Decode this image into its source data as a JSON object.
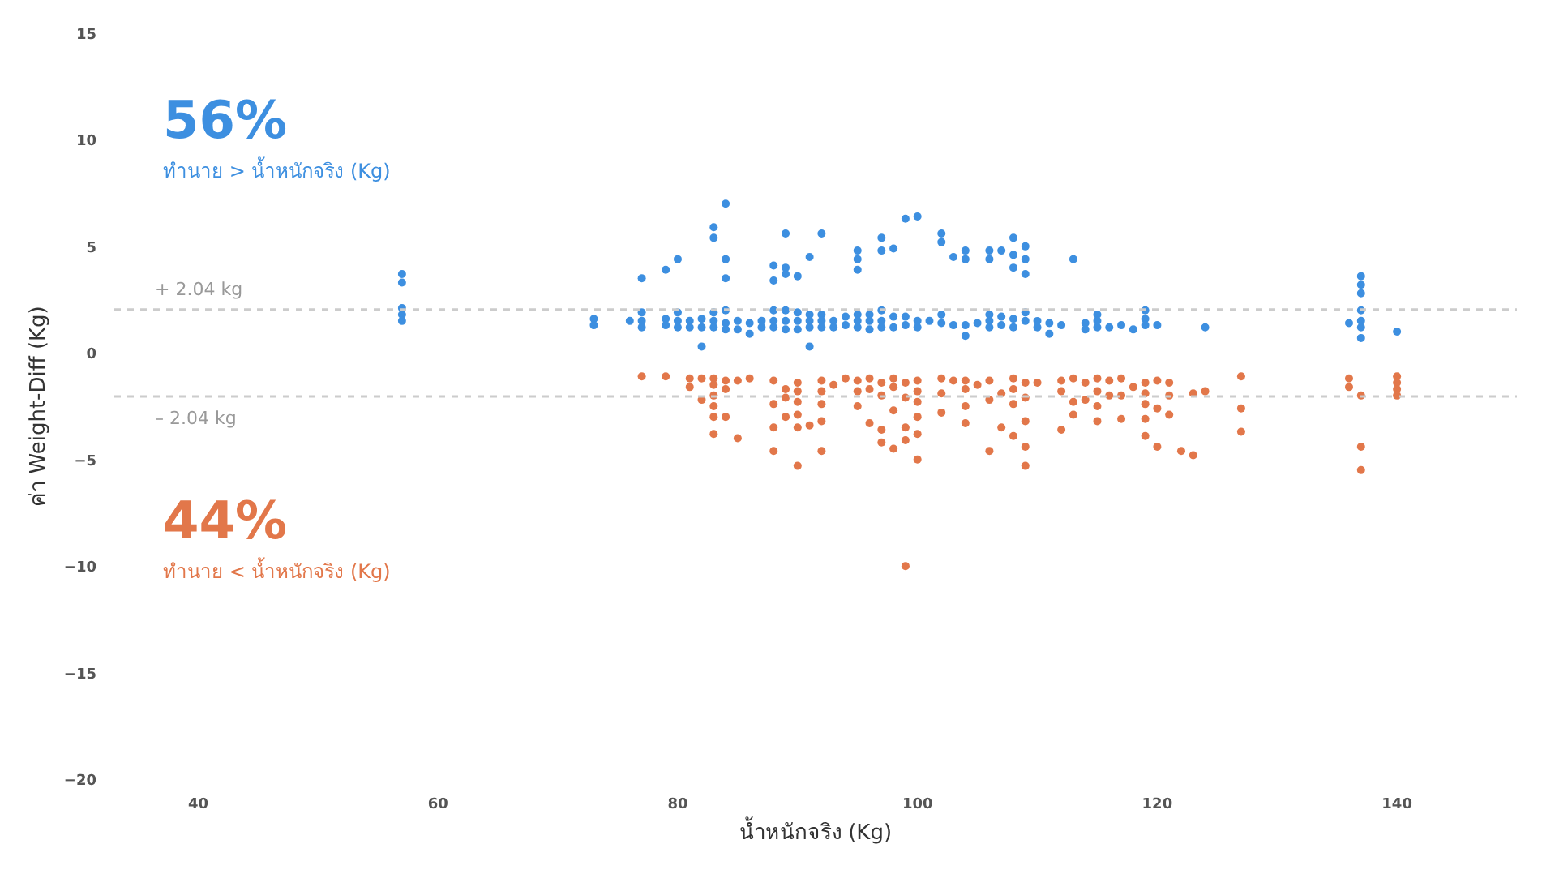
{
  "chart_data": {
    "type": "scatter",
    "xlabel": "น้ำหนักจริง (Kg)",
    "ylabel": "ค่า Weight-Diff (Kg)",
    "xlim": [
      33,
      150
    ],
    "ylim": [
      -20,
      15
    ],
    "xticks": [
      40,
      60,
      80,
      100,
      120,
      140
    ],
    "yticks": [
      -20,
      -15,
      -10,
      -5,
      0,
      5,
      10,
      15
    ],
    "grid": false,
    "marker": "circle",
    "annotations": [
      "56%",
      "ทำนาย > น้ำหนักจริง (Kg)",
      "44%",
      "ทำนาย < น้ำหนักจริง (Kg)"
    ],
    "ref_lines": [
      {
        "axis": "y",
        "value": 2.04,
        "label": "+ 2.04 kg",
        "color": "#cccccc",
        "line_style": "dashed"
      },
      {
        "axis": "y",
        "value": -2.04,
        "label": "– 2.04 kg",
        "color": "#cccccc",
        "line_style": "dashed"
      }
    ],
    "series": [
      {
        "color": "#3d8fe0",
        "x": [
          57,
          57,
          57,
          57,
          57,
          73,
          73,
          76,
          77,
          77,
          77,
          77,
          79,
          79,
          79,
          80,
          80,
          80,
          80,
          81,
          81,
          82,
          82,
          82,
          83,
          83,
          83,
          83,
          83,
          84,
          84,
          84,
          84,
          84,
          84,
          85,
          85,
          86,
          86,
          87,
          87,
          88,
          88,
          88,
          88,
          88,
          89,
          89,
          89,
          89,
          89,
          89,
          90,
          90,
          90,
          90,
          91,
          91,
          91,
          91,
          91,
          92,
          92,
          92,
          92,
          93,
          93,
          94,
          94,
          95,
          95,
          95,
          95,
          95,
          95,
          96,
          96,
          96,
          97,
          97,
          97,
          97,
          97,
          98,
          98,
          98,
          99,
          99,
          99,
          100,
          100,
          100,
          101,
          102,
          102,
          102,
          102,
          103,
          103,
          104,
          104,
          104,
          104,
          105,
          106,
          106,
          106,
          106,
          106,
          107,
          107,
          107,
          108,
          108,
          108,
          108,
          108,
          109,
          109,
          109,
          109,
          109,
          110,
          110,
          111,
          111,
          112,
          113,
          114,
          114,
          115,
          115,
          115,
          116,
          117,
          118,
          119,
          119,
          119,
          120,
          124,
          136,
          137,
          137,
          137,
          137,
          137,
          137,
          137,
          140
        ],
        "values": [
          3.7,
          3.3,
          2.1,
          1.8,
          1.5,
          1.6,
          1.3,
          1.5,
          3.5,
          1.9,
          1.5,
          1.2,
          3.9,
          1.6,
          1.3,
          4.4,
          1.9,
          1.5,
          1.2,
          1.5,
          1.2,
          1.6,
          1.2,
          0.3,
          5.9,
          5.4,
          1.9,
          1.5,
          1.2,
          7.0,
          4.4,
          3.5,
          2.0,
          1.4,
          1.1,
          1.5,
          1.1,
          1.4,
          0.9,
          1.5,
          1.2,
          4.1,
          3.4,
          2.0,
          1.5,
          1.2,
          5.6,
          4.0,
          3.7,
          2.0,
          1.5,
          1.1,
          3.6,
          1.9,
          1.5,
          1.1,
          4.5,
          1.8,
          1.5,
          1.2,
          0.3,
          5.6,
          1.8,
          1.5,
          1.2,
          1.5,
          1.2,
          1.7,
          1.3,
          4.8,
          4.4,
          3.9,
          1.8,
          1.5,
          1.2,
          1.8,
          1.5,
          1.1,
          5.4,
          4.8,
          2.0,
          1.5,
          1.2,
          4.9,
          1.7,
          1.2,
          6.3,
          1.7,
          1.3,
          6.4,
          1.5,
          1.2,
          1.5,
          5.6,
          5.2,
          1.8,
          1.4,
          4.5,
          1.3,
          4.8,
          4.4,
          1.3,
          0.8,
          1.4,
          4.8,
          4.4,
          1.8,
          1.5,
          1.2,
          4.8,
          1.7,
          1.3,
          5.4,
          4.6,
          4.0,
          1.6,
          1.2,
          5.0,
          4.4,
          3.7,
          1.9,
          1.5,
          1.5,
          1.2,
          1.4,
          0.9,
          1.3,
          4.4,
          1.4,
          1.1,
          1.8,
          1.5,
          1.2,
          1.2,
          1.3,
          1.1,
          2.0,
          1.6,
          1.3,
          1.3,
          1.2,
          1.4,
          3.6,
          3.2,
          2.8,
          2.0,
          1.5,
          1.2,
          0.7,
          1.0
        ]
      },
      {
        "color": "#e2774a",
        "x": [
          77,
          79,
          81,
          81,
          82,
          82,
          83,
          83,
          83,
          83,
          83,
          83,
          84,
          84,
          84,
          85,
          85,
          86,
          88,
          88,
          88,
          88,
          89,
          89,
          89,
          90,
          90,
          90,
          90,
          90,
          90,
          91,
          92,
          92,
          92,
          92,
          92,
          93,
          94,
          95,
          95,
          95,
          96,
          96,
          96,
          97,
          97,
          97,
          97,
          98,
          98,
          98,
          98,
          99,
          99,
          99,
          99,
          99,
          100,
          100,
          100,
          100,
          100,
          100,
          102,
          102,
          102,
          103,
          104,
          104,
          104,
          104,
          105,
          106,
          106,
          106,
          107,
          107,
          108,
          108,
          108,
          108,
          109,
          109,
          109,
          109,
          109,
          110,
          112,
          112,
          112,
          113,
          113,
          113,
          114,
          114,
          115,
          115,
          115,
          115,
          116,
          116,
          117,
          117,
          117,
          118,
          119,
          119,
          119,
          119,
          119,
          120,
          120,
          120,
          121,
          121,
          121,
          122,
          123,
          123,
          124,
          127,
          127,
          127,
          136,
          136,
          137,
          137,
          137,
          140,
          140,
          140,
          140
        ],
        "values": [
          -1.1,
          -1.1,
          -1.6,
          -1.2,
          -1.2,
          -2.2,
          -1.2,
          -1.5,
          -2.0,
          -2.5,
          -3.0,
          -3.8,
          -1.3,
          -1.7,
          -3.0,
          -1.3,
          -4.0,
          -1.2,
          -1.3,
          -2.4,
          -3.5,
          -4.6,
          -1.7,
          -2.1,
          -3.0,
          -1.4,
          -1.8,
          -2.3,
          -2.9,
          -3.5,
          -5.3,
          -3.4,
          -1.3,
          -1.8,
          -2.4,
          -3.2,
          -4.6,
          -1.5,
          -1.2,
          -1.3,
          -1.8,
          -2.5,
          -1.2,
          -1.7,
          -3.3,
          -1.4,
          -2.0,
          -3.6,
          -4.2,
          -1.2,
          -1.6,
          -2.7,
          -4.5,
          -1.4,
          -2.1,
          -3.5,
          -4.1,
          -10.0,
          -1.3,
          -1.8,
          -2.3,
          -3.0,
          -3.8,
          -5.0,
          -1.2,
          -1.9,
          -2.8,
          -1.3,
          -1.3,
          -1.7,
          -2.5,
          -3.3,
          -1.5,
          -1.3,
          -2.2,
          -4.6,
          -1.9,
          -3.5,
          -1.2,
          -1.7,
          -2.4,
          -3.9,
          -1.4,
          -2.1,
          -3.2,
          -4.4,
          -5.3,
          -1.4,
          -1.3,
          -1.8,
          -3.6,
          -1.2,
          -2.3,
          -2.9,
          -1.4,
          -2.2,
          -1.2,
          -1.8,
          -2.5,
          -3.2,
          -1.3,
          -2.0,
          -1.2,
          -2.0,
          -3.1,
          -1.6,
          -1.4,
          -1.9,
          -2.4,
          -3.1,
          -3.9,
          -1.3,
          -2.6,
          -4.4,
          -1.4,
          -2.0,
          -2.9,
          -4.6,
          -1.9,
          -4.8,
          -1.8,
          -1.1,
          -2.6,
          -3.7,
          -1.2,
          -1.6,
          -2.0,
          -4.4,
          -5.5,
          -1.1,
          -1.4,
          -1.7,
          -2.0
        ]
      }
    ]
  }
}
